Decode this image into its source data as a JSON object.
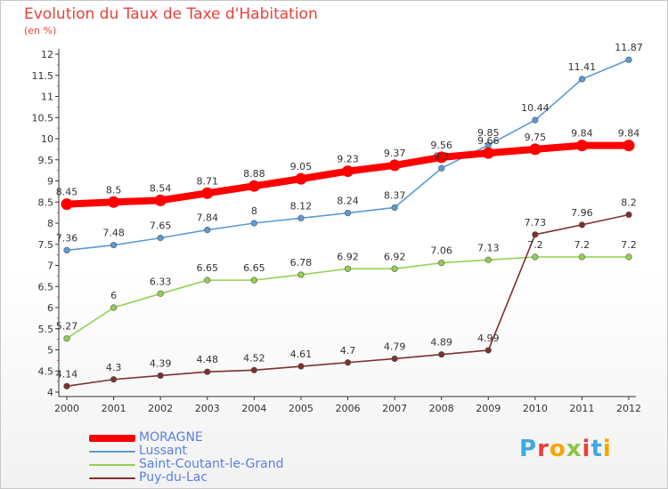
{
  "chart_data": {
    "type": "line",
    "title": "Evolution du Taux de Taxe d'Habitation",
    "unit_label": "(en %)",
    "x": [
      "2000",
      "2001",
      "2002",
      "2003",
      "2004",
      "2005",
      "2006",
      "2007",
      "2008",
      "2009",
      "2010",
      "2011",
      "2012"
    ],
    "yticks": [
      "4",
      "4.5",
      "5",
      "5.5",
      "6",
      "6.5",
      "7",
      "7.5",
      "8",
      "8.5",
      "9",
      "9.5",
      "10",
      "10.5",
      "11",
      "11.5",
      "12"
    ],
    "ylim": [
      4,
      12
    ],
    "grid": false,
    "legend_position": "bottom-left",
    "series": [
      {
        "name": "MORAGNE",
        "color": "#ff0000",
        "values": [
          8.45,
          8.5,
          8.54,
          8.71,
          8.88,
          9.05,
          9.23,
          9.37,
          9.56,
          9.66,
          9.75,
          9.84,
          9.84
        ],
        "labels": [
          "8.45",
          "8.5",
          "8.54",
          "8.71",
          "8.88",
          "9.05",
          "9.23",
          "9.37",
          "9.56",
          "9.66",
          "9.75",
          "9.84",
          "9.84"
        ]
      },
      {
        "name": "Lussant",
        "color": "#5b9bd5",
        "values": [
          7.36,
          7.48,
          7.65,
          7.84,
          8,
          8.12,
          8.24,
          8.37,
          9.3,
          9.85,
          10.44,
          11.41,
          11.87
        ],
        "labels": [
          "7.36",
          "7.48",
          "7.65",
          "7.84",
          "8",
          "8.12",
          "8.24",
          "8.37",
          "9.3",
          "9.85",
          "10.44",
          "11.41",
          "11.87"
        ]
      },
      {
        "name": "Saint-Coutant-le-Grand",
        "color": "#92d050",
        "values": [
          5.27,
          6,
          6.33,
          6.65,
          6.65,
          6.78,
          6.92,
          6.92,
          7.06,
          7.13,
          7.2,
          7.2,
          7.2
        ],
        "labels": [
          "5.27",
          "6",
          "6.33",
          "6.65",
          "6.65",
          "6.78",
          "6.92",
          "6.92",
          "7.06",
          "7.13",
          "7.2",
          "7.2",
          "7.2"
        ]
      },
      {
        "name": "Puy-du-Lac",
        "color": "#7f2f2f",
        "values": [
          4.14,
          4.3,
          4.39,
          4.48,
          4.52,
          4.61,
          4.7,
          4.79,
          4.89,
          4.99,
          7.73,
          7.96,
          8.2
        ],
        "labels": [
          "4.14",
          "4.3",
          "4.39",
          "4.48",
          "4.52",
          "4.61",
          "4.7",
          "4.79",
          "4.89",
          "4.99",
          "7.73",
          "7.96",
          "8.2"
        ]
      }
    ]
  },
  "logo": {
    "text": "Proxiti",
    "letter_colors": [
      "#3fa9e0",
      "#e6413b",
      "#f7a600",
      "#8cc63f",
      "#e6413b",
      "#3fa9e0",
      "#f7a600"
    ]
  }
}
